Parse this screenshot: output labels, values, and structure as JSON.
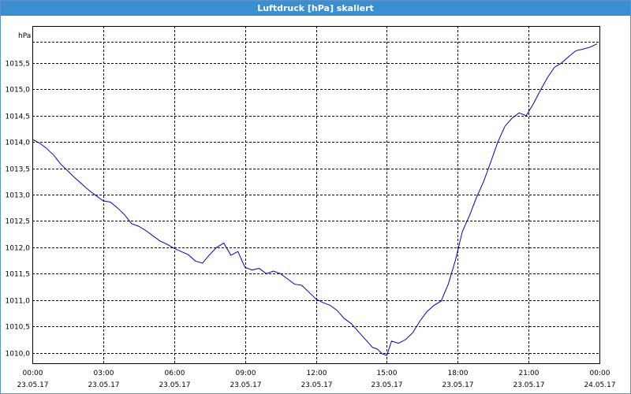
{
  "window": {
    "title": "Luftdruck [hPa] skaliert"
  },
  "chart_data": {
    "type": "line",
    "title": "Luftdruck [hPa] skaliert",
    "ylabel": "hPa",
    "ylim": [
      1009.8,
      1016.2
    ],
    "y_ticks": [
      1010.0,
      1010.5,
      1011.0,
      1011.5,
      1012.0,
      1012.5,
      1013.0,
      1013.5,
      1014.0,
      1014.5,
      1015.0,
      1015.5
    ],
    "y_tick_labels": [
      "1010,0",
      "1010,5",
      "1011,0",
      "1011,5",
      "1012,0",
      "1012,5",
      "1013,0",
      "1013,5",
      "1014,0",
      "1014,5",
      "1015,0",
      "1015,5"
    ],
    "xlim": [
      0,
      24
    ],
    "x_ticks": [
      0,
      3,
      6,
      9,
      12,
      15,
      18,
      21,
      24
    ],
    "x_tick_labels": [
      {
        "time": "00:00",
        "date": "23.05.17"
      },
      {
        "time": "03:00",
        "date": "23.05.17"
      },
      {
        "time": "06:00",
        "date": "23.05.17"
      },
      {
        "time": "09:00",
        "date": "23.05.17"
      },
      {
        "time": "12:00",
        "date": "23.05.17"
      },
      {
        "time": "15:00",
        "date": "23.05.17"
      },
      {
        "time": "18:00",
        "date": "23.05.17"
      },
      {
        "time": "21:00",
        "date": "23.05.17"
      },
      {
        "time": "00:00",
        "date": "24.05.17"
      }
    ],
    "grid": true,
    "line_color": "#0000cc",
    "series": [
      {
        "x": [
          0,
          0.3,
          0.6,
          0.9,
          1.2,
          1.5,
          1.8,
          2.1,
          2.4,
          2.7,
          3.0,
          3.3,
          3.6,
          3.9,
          4.2,
          4.5,
          4.8,
          5.1,
          5.4,
          5.7,
          6.0,
          6.3,
          6.6,
          6.9,
          7.2,
          7.5,
          7.8,
          8.1,
          8.4,
          8.7,
          9.0,
          9.3,
          9.6,
          9.9,
          10.2,
          10.5,
          10.8,
          11.1,
          11.4,
          11.7,
          12.0,
          12.3,
          12.6,
          12.9,
          13.2,
          13.5,
          13.8,
          14.1,
          14.4,
          14.6,
          14.8,
          15.0,
          15.2,
          15.5,
          15.8,
          16.1,
          16.4,
          16.7,
          17.0,
          17.3,
          17.6,
          17.9,
          18.2,
          18.5,
          18.8,
          19.1,
          19.4,
          19.7,
          20.0,
          20.3,
          20.6,
          20.9,
          21.2,
          21.5,
          21.8,
          22.1,
          22.4,
          22.7,
          23.0,
          23.3,
          23.6,
          23.9
        ],
        "y": [
          1014.05,
          1013.98,
          1013.88,
          1013.75,
          1013.58,
          1013.45,
          1013.32,
          1013.2,
          1013.08,
          1012.98,
          1012.88,
          1012.86,
          1012.75,
          1012.62,
          1012.45,
          1012.4,
          1012.32,
          1012.22,
          1012.12,
          1012.06,
          1011.98,
          1011.92,
          1011.86,
          1011.74,
          1011.7,
          1011.86,
          1012.0,
          1012.08,
          1011.85,
          1011.92,
          1011.62,
          1011.57,
          1011.6,
          1011.5,
          1011.55,
          1011.5,
          1011.4,
          1011.3,
          1011.28,
          1011.15,
          1011.02,
          1010.95,
          1010.9,
          1010.8,
          1010.65,
          1010.55,
          1010.4,
          1010.25,
          1010.1,
          1010.07,
          1009.98,
          1009.95,
          1010.22,
          1010.18,
          1010.25,
          1010.38,
          1010.6,
          1010.78,
          1010.9,
          1010.98,
          1011.3,
          1011.75,
          1012.3,
          1012.6,
          1012.95,
          1013.25,
          1013.62,
          1014.0,
          1014.3,
          1014.45,
          1014.55,
          1014.5,
          1014.72,
          1014.98,
          1015.22,
          1015.42,
          1015.5,
          1015.62,
          1015.73,
          1015.76,
          1015.8,
          1015.86
        ]
      }
    ]
  }
}
